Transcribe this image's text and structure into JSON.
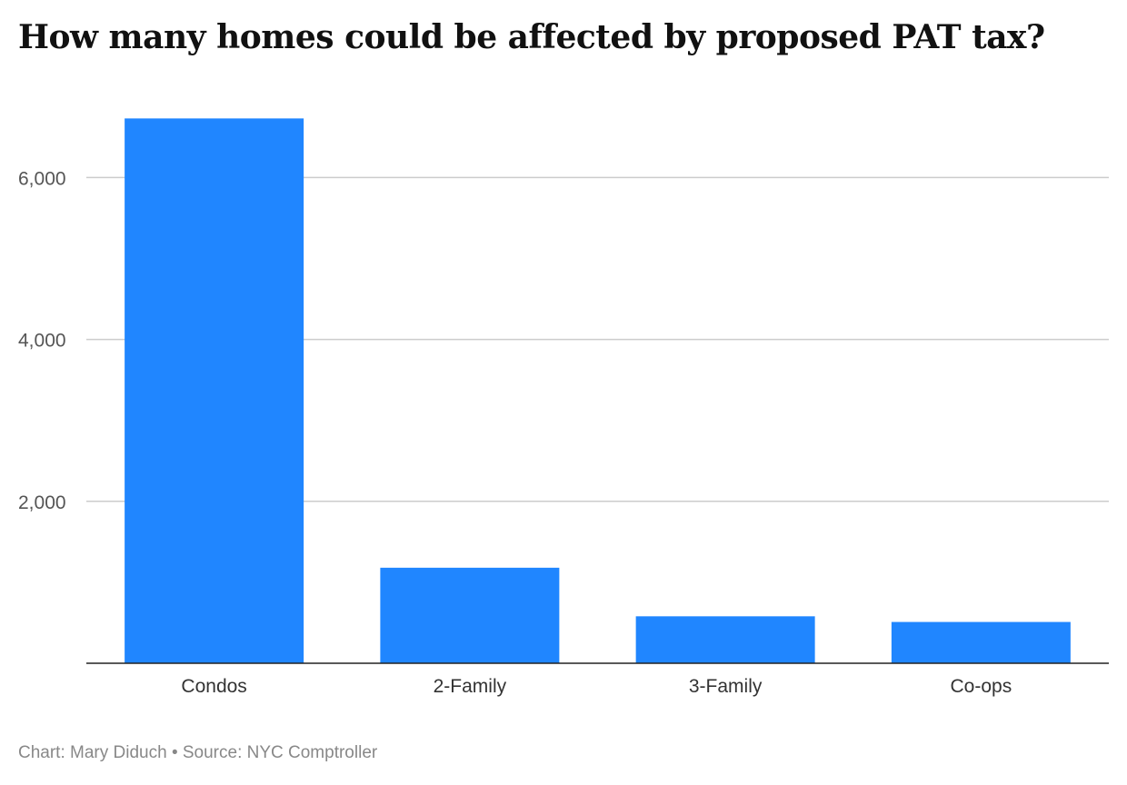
{
  "chart_data": {
    "type": "bar",
    "title": "How many homes could be affected by proposed PAT tax?",
    "categories": [
      "Condos",
      "2-Family",
      "3-Family",
      "Co-ops"
    ],
    "values": [
      6730,
      1180,
      580,
      510
    ],
    "ylim": [
      0,
      7000
    ],
    "yticks": [
      2000,
      4000,
      6000
    ],
    "ytick_labels": [
      "2,000",
      "4,000",
      "6,000"
    ],
    "xlabel": "",
    "ylabel": "",
    "grid": true,
    "legend": "none",
    "bar_color": "#2086ff"
  },
  "footer": {
    "credit": "Chart: Mary Diduch • Source: NYC Comptroller"
  }
}
